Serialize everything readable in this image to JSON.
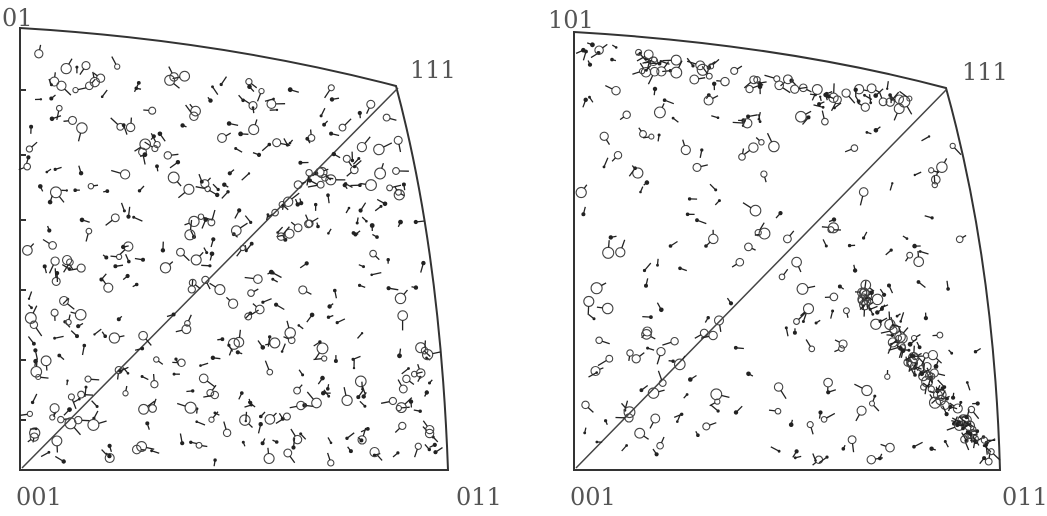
{
  "figures": [
    {
      "id": "left",
      "corner_labels": {
        "top_left": "01",
        "top_right": "111",
        "bottom_left": "001",
        "bottom_right": "011"
      },
      "cluster": "none"
    },
    {
      "id": "right",
      "corner_labels": {
        "top_left": "101",
        "top_right": "111",
        "bottom_left": "001",
        "bottom_right": "011"
      },
      "cluster": "top-edge-and-lower-right-diagonal"
    }
  ],
  "colors": {
    "ink": "#333333",
    "label": "#555555",
    "background": "#ffffff"
  }
}
